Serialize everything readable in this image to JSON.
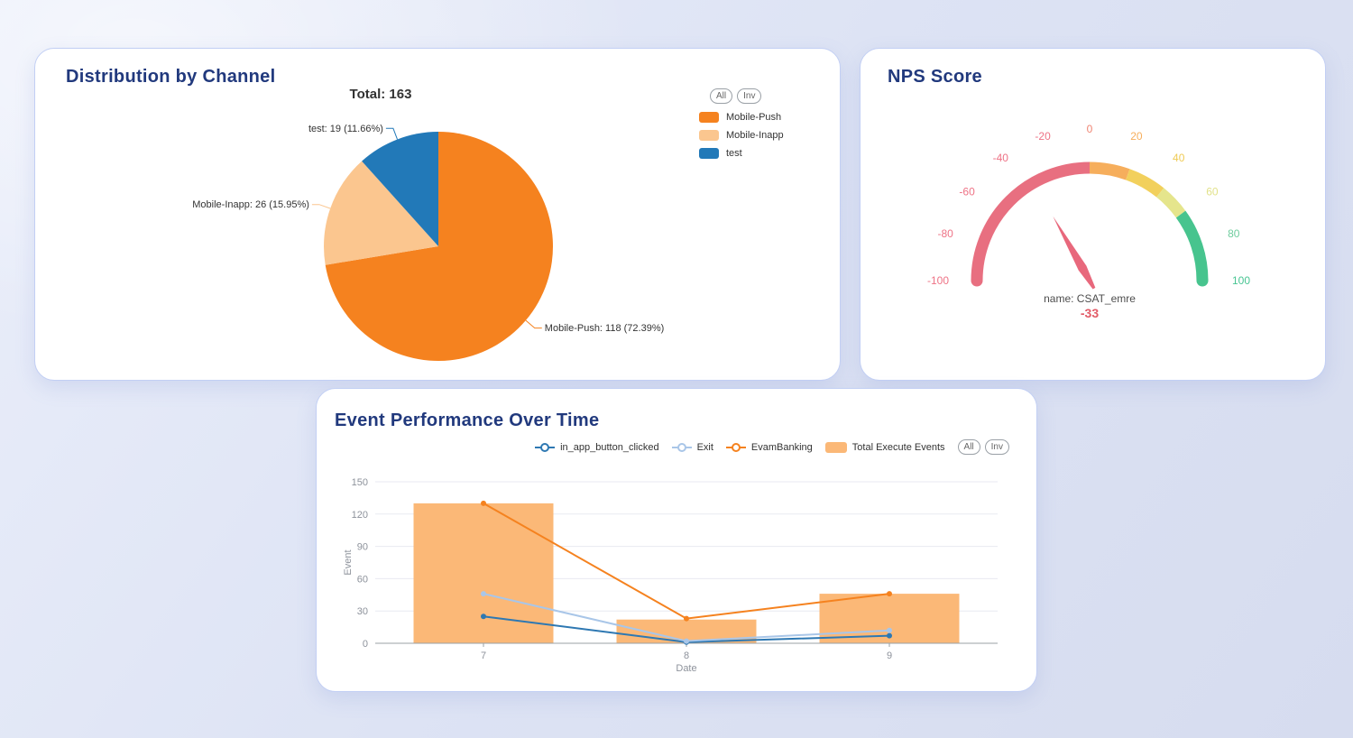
{
  "palette": {
    "page_background": "#dde3f4",
    "card_background": "#ffffff",
    "card_border": "#c2cff4",
    "title_color": "#21397d",
    "axis_text": "#8d929b",
    "gridline": "#e8eaf1",
    "axis_line": "#9aa0a6"
  },
  "cards": {
    "distribution": {
      "title": "Distribution by Channel",
      "total_label": "Total: 163",
      "buttons": {
        "all": "All",
        "inv": "Inv"
      }
    },
    "nps": {
      "title": "NPS Score",
      "name_label": "name: CSAT_emre",
      "value_label": "-33"
    },
    "events": {
      "title": "Event Performance Over Time",
      "buttons": {
        "all": "All",
        "inv": "Inv"
      }
    }
  },
  "chart_data": [
    {
      "type": "pie",
      "title": "Distribution by Channel",
      "total": 163,
      "slices": [
        {
          "label": "Mobile-Push",
          "value": 118,
          "pct": 72.39,
          "color": "#F5821F",
          "callout": "Mobile-Push: 118 (72.39%)"
        },
        {
          "label": "Mobile-Inapp",
          "value": 26,
          "pct": 15.95,
          "color": "#FBC68F",
          "callout": "Mobile-Inapp: 26 (15.95%)"
        },
        {
          "label": "test",
          "value": 19,
          "pct": 11.66,
          "color": "#2279B8",
          "callout": "test: 19 (11.66%)"
        }
      ]
    },
    {
      "type": "gauge",
      "title": "NPS Score",
      "min": -100,
      "max": 100,
      "value": -33,
      "name": "CSAT_emre",
      "needle_color": "#E8687C",
      "value_color": "#e25b67",
      "segments": [
        {
          "from": -100,
          "to": 0,
          "color": "#E86F80"
        },
        {
          "from": 0,
          "to": 22,
          "color": "#F6AE5C"
        },
        {
          "from": 22,
          "to": 43,
          "color": "#F2D05C"
        },
        {
          "from": 43,
          "to": 60,
          "color": "#E5E58C"
        },
        {
          "from": 60,
          "to": 100,
          "color": "#47C48E"
        }
      ],
      "ticks": [
        {
          "v": -100,
          "label": "-100",
          "color": "#EE7386"
        },
        {
          "v": -80,
          "label": "-80",
          "color": "#EE7386"
        },
        {
          "v": -60,
          "label": "-60",
          "color": "#EE7386"
        },
        {
          "v": -40,
          "label": "-40",
          "color": "#EE7386"
        },
        {
          "v": -20,
          "label": "-20",
          "color": "#EE7386"
        },
        {
          "v": 0,
          "label": "0",
          "color": "#EF8573"
        },
        {
          "v": 20,
          "label": "20",
          "color": "#F6AE5C"
        },
        {
          "v": 40,
          "label": "40",
          "color": "#EFCB55"
        },
        {
          "v": 60,
          "label": "60",
          "color": "#E2E28A"
        },
        {
          "v": 80,
          "label": "80",
          "color": "#6FCD9D"
        },
        {
          "v": 100,
          "label": "100",
          "color": "#49C593"
        }
      ]
    },
    {
      "type": "combo",
      "title": "Event Performance Over Time",
      "categories": [
        "7",
        "8",
        "9"
      ],
      "xlabel": "Date",
      "ylabel": "Event",
      "ylim": [
        0,
        150
      ],
      "yticks": [
        0,
        30,
        60,
        90,
        120,
        150
      ],
      "series": [
        {
          "name": "in_app_button_clicked",
          "type": "line",
          "color": "#2E78B2",
          "values": [
            25,
            1,
            7
          ]
        },
        {
          "name": "Exit",
          "type": "line",
          "color": "#A9C6E8",
          "values": [
            46,
            2,
            12
          ]
        },
        {
          "name": "EvamBanking",
          "type": "line",
          "color": "#F5821F",
          "values": [
            130,
            23,
            46
          ]
        },
        {
          "name": "Total Execute Events",
          "type": "bar",
          "color": "#FBB877",
          "values": [
            130,
            22,
            46
          ]
        }
      ]
    }
  ]
}
